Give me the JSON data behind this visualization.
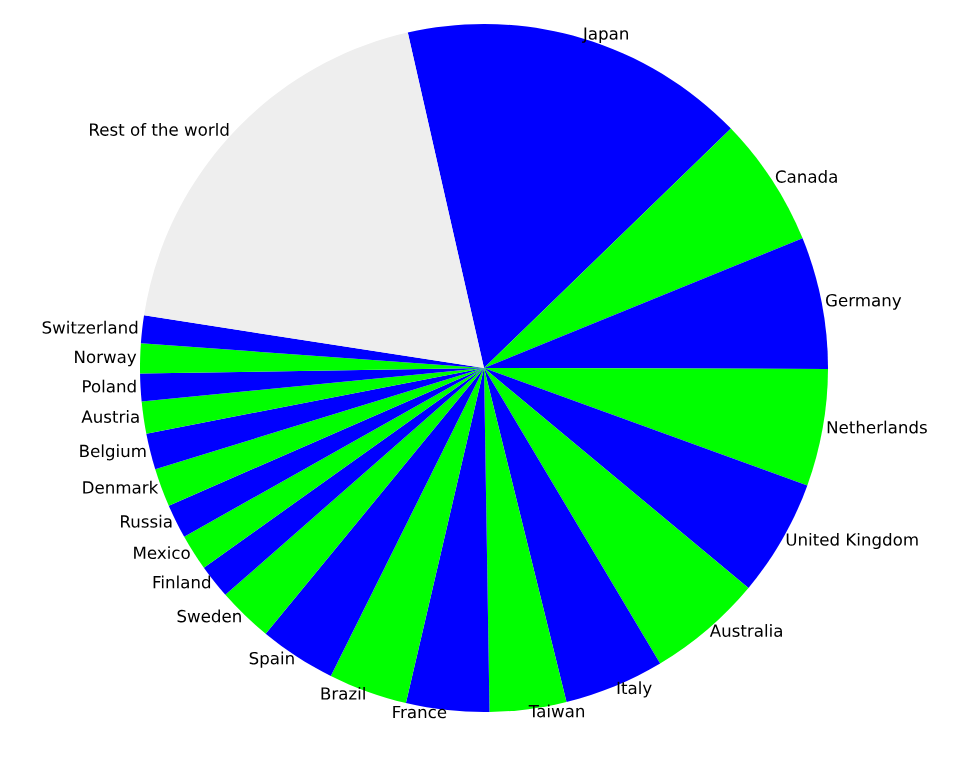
{
  "chart_data": {
    "type": "pie",
    "categories": [
      "Japan",
      "Canada",
      "Germany",
      "Netherlands",
      "United Kingdom",
      "Australia",
      "Italy",
      "Taiwan",
      "France",
      "Brazil",
      "Spain",
      "Sweden",
      "Finland",
      "Mexico",
      "Russia",
      "Denmark",
      "Belgium",
      "Austria",
      "Poland",
      "Norway",
      "Switzerland",
      "Rest of the world"
    ],
    "values": [
      16.3,
      6.1,
      6.2,
      5.5,
      5.5,
      5.4,
      4.7,
      3.6,
      3.9,
      3.7,
      3.6,
      2.6,
      1.6,
      1.7,
      1.6,
      1.8,
      1.7,
      1.5,
      1.3,
      1.4,
      1.3,
      19.0
    ],
    "colors": [
      "#0000ff",
      "#00ff00",
      "#0000ff",
      "#00ff00",
      "#0000ff",
      "#00ff00",
      "#0000ff",
      "#00ff00",
      "#0000ff",
      "#00ff00",
      "#0000ff",
      "#00ff00",
      "#0000ff",
      "#00ff00",
      "#0000ff",
      "#00ff00",
      "#0000ff",
      "#00ff00",
      "#0000ff",
      "#00ff00",
      "#0000ff",
      "#eeeeee"
    ],
    "legend": false
  }
}
